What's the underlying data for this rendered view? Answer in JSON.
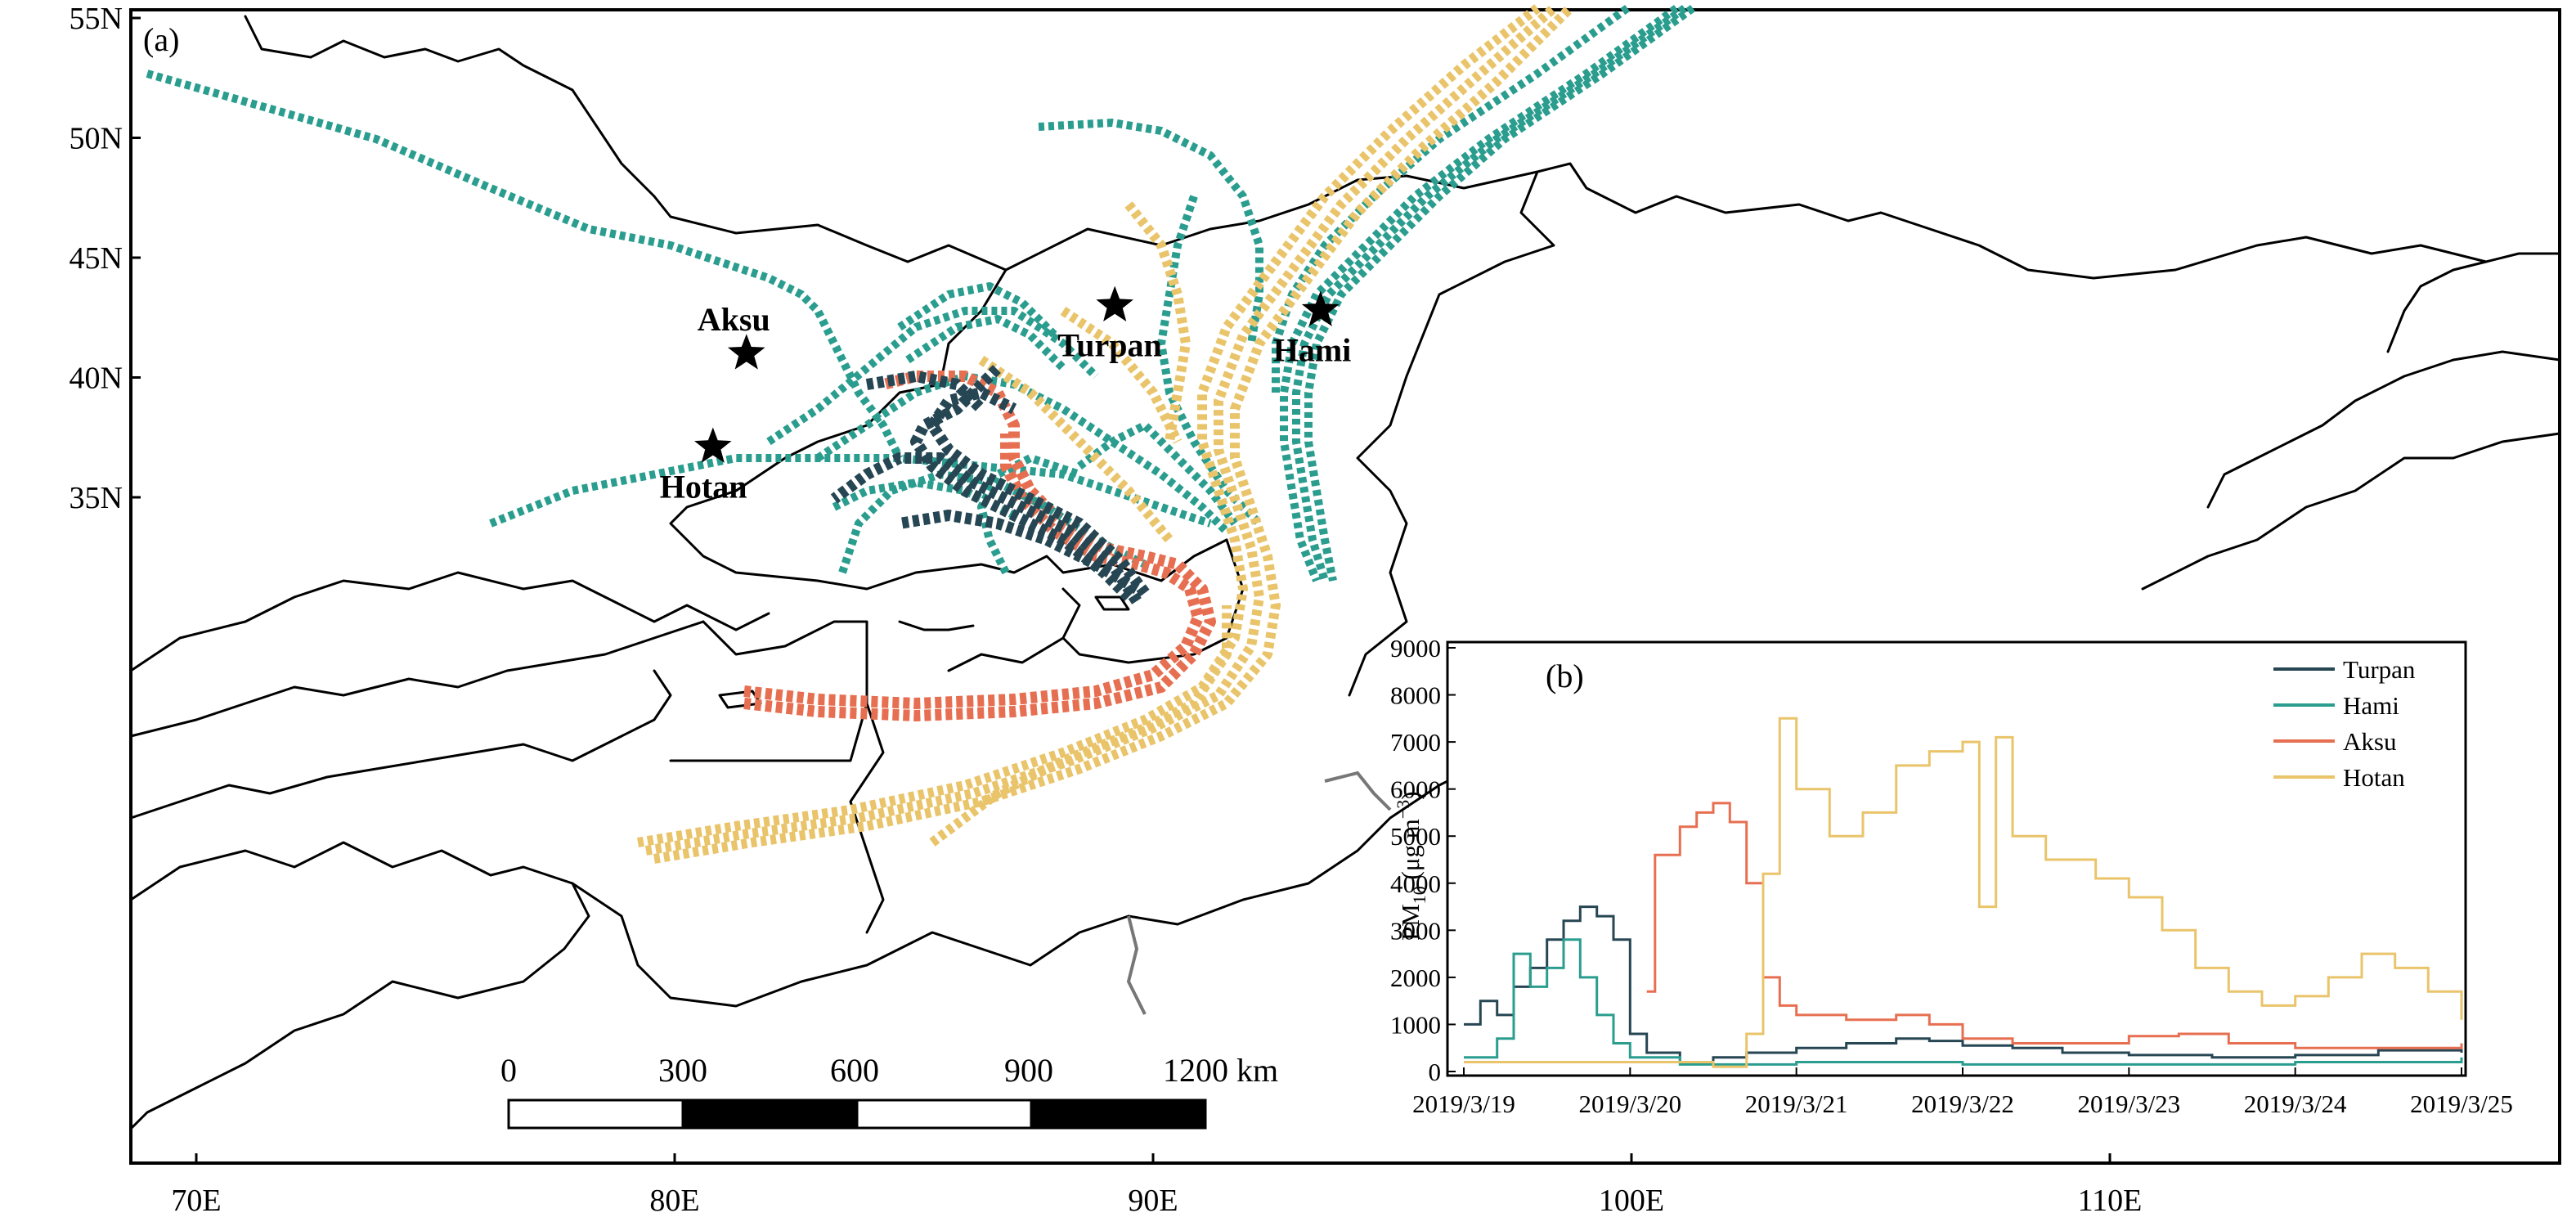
{
  "map": {
    "panel_label": "(a)",
    "lat_labels": [
      "55N",
      "50N",
      "45N",
      "40N",
      "35N"
    ],
    "lon_labels": [
      "70E",
      "80E",
      "90E",
      "100E",
      "110E"
    ],
    "cities": [
      {
        "name": "Turpan",
        "lon": 89.2,
        "lat": 43.0,
        "icon": "star-icon"
      },
      {
        "name": "Hami",
        "lon": 93.5,
        "lat": 42.8,
        "icon": "star-icon"
      },
      {
        "name": "Aksu",
        "lon": 81.5,
        "lat": 41.0,
        "icon": "star-icon"
      },
      {
        "name": "Hotan",
        "lon": 80.8,
        "lat": 37.1,
        "icon": "star-icon"
      }
    ],
    "scale_bar": {
      "labels": [
        "0",
        "300",
        "600",
        "900",
        "1200 km"
      ]
    },
    "colors": {
      "Turpan": "#264653",
      "Hami": "#2a9d8f",
      "Aksu": "#e76f51",
      "Hotan": "#e9c46a"
    }
  },
  "chart_data": {
    "type": "line",
    "panel_label": "(b)",
    "ylabel_main": "PM",
    "ylabel_sub": "10",
    "ylabel_unit_open": " (μg m",
    "ylabel_unit_sup": "−3",
    "ylabel_unit_close": ")",
    "ylim": [
      0,
      9000
    ],
    "yticks": [
      "0",
      "1000",
      "2000",
      "3000",
      "4000",
      "5000",
      "6000",
      "7000",
      "8000",
      "9000"
    ],
    "xticks": [
      "2019/3/19",
      "2019/3/20",
      "2019/3/21",
      "2019/3/22",
      "2019/3/23",
      "2019/3/24",
      "2019/3/25"
    ],
    "legend_position": "top-right",
    "series": [
      {
        "name": "Turpan",
        "color": "#264653",
        "points": [
          [
            0,
            1000
          ],
          [
            0.1,
            1500
          ],
          [
            0.2,
            1200
          ],
          [
            0.3,
            1800
          ],
          [
            0.4,
            2200
          ],
          [
            0.5,
            2800
          ],
          [
            0.6,
            3200
          ],
          [
            0.7,
            3500
          ],
          [
            0.8,
            3300
          ],
          [
            0.9,
            2800
          ],
          [
            1.0,
            800
          ],
          [
            1.1,
            400
          ],
          [
            1.3,
            200
          ],
          [
            1.5,
            300
          ],
          [
            1.7,
            400
          ],
          [
            2.0,
            500
          ],
          [
            2.3,
            600
          ],
          [
            2.6,
            700
          ],
          [
            2.8,
            650
          ],
          [
            3.0,
            550
          ],
          [
            3.3,
            500
          ],
          [
            3.6,
            400
          ],
          [
            4.0,
            350
          ],
          [
            4.5,
            300
          ],
          [
            5.0,
            350
          ],
          [
            5.5,
            450
          ],
          [
            6.0,
            400
          ]
        ]
      },
      {
        "name": "Hami",
        "color": "#2a9d8f",
        "points": [
          [
            0,
            300
          ],
          [
            0.2,
            700
          ],
          [
            0.3,
            2500
          ],
          [
            0.4,
            1800
          ],
          [
            0.5,
            2200
          ],
          [
            0.6,
            2800
          ],
          [
            0.7,
            2000
          ],
          [
            0.8,
            1200
          ],
          [
            0.9,
            600
          ],
          [
            1.0,
            300
          ],
          [
            1.3,
            150
          ],
          [
            2.0,
            200
          ],
          [
            3.0,
            150
          ],
          [
            4.0,
            150
          ],
          [
            5.0,
            200
          ],
          [
            6.0,
            300
          ]
        ]
      },
      {
        "name": "Aksu",
        "color": "#e76f51",
        "points": [
          [
            1.1,
            1700
          ],
          [
            1.15,
            4600
          ],
          [
            1.3,
            5200
          ],
          [
            1.4,
            5500
          ],
          [
            1.5,
            5700
          ],
          [
            1.6,
            5300
          ],
          [
            1.7,
            4000
          ],
          [
            1.8,
            2000
          ],
          [
            1.9,
            1400
          ],
          [
            2.0,
            1200
          ],
          [
            2.3,
            1100
          ],
          [
            2.6,
            1200
          ],
          [
            2.8,
            1000
          ],
          [
            3.0,
            700
          ],
          [
            3.3,
            600
          ],
          [
            3.6,
            600
          ],
          [
            4.0,
            750
          ],
          [
            4.3,
            800
          ],
          [
            4.6,
            600
          ],
          [
            5.0,
            500
          ],
          [
            5.5,
            500
          ],
          [
            6.0,
            600
          ]
        ]
      },
      {
        "name": "Hotan",
        "color": "#e9c46a",
        "points": [
          [
            0,
            200
          ],
          [
            0.5,
            200
          ],
          [
            1.0,
            200
          ],
          [
            1.5,
            100
          ],
          [
            1.7,
            800
          ],
          [
            1.8,
            4200
          ],
          [
            1.9,
            7500
          ],
          [
            2.0,
            6000
          ],
          [
            2.2,
            5000
          ],
          [
            2.4,
            5500
          ],
          [
            2.6,
            6500
          ],
          [
            2.8,
            6800
          ],
          [
            3.0,
            7000
          ],
          [
            3.1,
            3500
          ],
          [
            3.2,
            7100
          ],
          [
            3.3,
            5000
          ],
          [
            3.5,
            4500
          ],
          [
            3.8,
            4100
          ],
          [
            4.0,
            3700
          ],
          [
            4.2,
            3000
          ],
          [
            4.4,
            2200
          ],
          [
            4.6,
            1700
          ],
          [
            4.8,
            1400
          ],
          [
            5.0,
            1600
          ],
          [
            5.2,
            2000
          ],
          [
            5.4,
            2500
          ],
          [
            5.6,
            2200
          ],
          [
            5.8,
            1700
          ],
          [
            6.0,
            1100
          ]
        ]
      }
    ]
  }
}
